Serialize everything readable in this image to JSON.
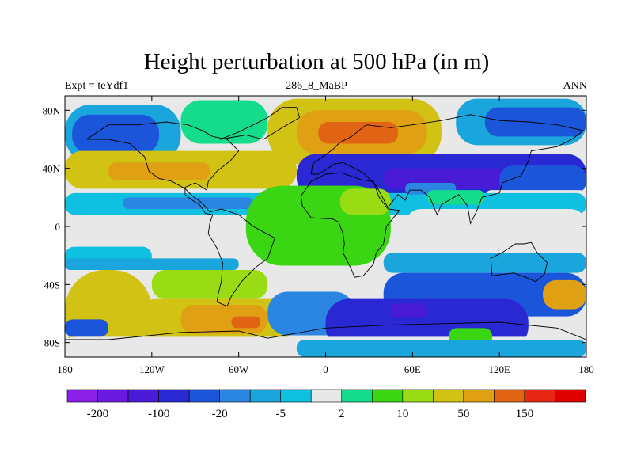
{
  "title": "Height perturbation at 500 hPa (in m)",
  "left_label": "Expt = teYdf1",
  "center_label": "286_8_MaBP",
  "right_label": "ANN",
  "x_ticks": [
    {
      "value": -180,
      "label": "180"
    },
    {
      "value": -120,
      "label": "120W"
    },
    {
      "value": -60,
      "label": "60W"
    },
    {
      "value": 0,
      "label": "0"
    },
    {
      "value": 60,
      "label": "60E"
    },
    {
      "value": 120,
      "label": "120E"
    },
    {
      "value": 180,
      "label": "180"
    }
  ],
  "y_ticks": [
    {
      "value": 80,
      "label": "80N"
    },
    {
      "value": 40,
      "label": "40N"
    },
    {
      "value": 0,
      "label": "0"
    },
    {
      "value": -40,
      "label": "40S"
    },
    {
      "value": -80,
      "label": "80S"
    }
  ],
  "x_range": [
    -180,
    180
  ],
  "y_range": [
    -90,
    90
  ],
  "colorbar": {
    "colors": [
      "#8a1fe8",
      "#6a1ae0",
      "#4a1bd6",
      "#2a28d2",
      "#1b55da",
      "#2a86e0",
      "#1aa5dc",
      "#10c0e0",
      "#e8e8e8",
      "#14dc8c",
      "#3ad614",
      "#9adc14",
      "#d2c214",
      "#e0a014",
      "#e06414",
      "#e82814",
      "#e00000"
    ],
    "labels": [
      {
        "boundary": 1,
        "text": "-200"
      },
      {
        "boundary": 3,
        "text": "-100"
      },
      {
        "boundary": 5,
        "text": "-20"
      },
      {
        "boundary": 7,
        "text": "-5"
      },
      {
        "boundary": 9,
        "text": "2"
      },
      {
        "boundary": 11,
        "text": "10"
      },
      {
        "boundary": 13,
        "text": "50"
      },
      {
        "boundary": 15,
        "text": "150"
      }
    ]
  },
  "field_regions": [
    {
      "lon": -180,
      "lat": 90,
      "w": 360,
      "h": 15,
      "c": 8
    },
    {
      "lon": -180,
      "lat": 84,
      "w": 80,
      "h": 40,
      "c": 6
    },
    {
      "lon": -175,
      "lat": 77,
      "w": 60,
      "h": 27,
      "c": 4
    },
    {
      "lon": -100,
      "lat": 87,
      "w": 60,
      "h": 30,
      "c": 9
    },
    {
      "lon": -40,
      "lat": 88,
      "w": 120,
      "h": 45,
      "c": 12
    },
    {
      "lon": -20,
      "lat": 80,
      "w": 90,
      "h": 30,
      "c": 13
    },
    {
      "lon": -5,
      "lat": 72,
      "w": 55,
      "h": 15,
      "c": 14
    },
    {
      "lon": 90,
      "lat": 88,
      "w": 90,
      "h": 32,
      "c": 6
    },
    {
      "lon": 110,
      "lat": 82,
      "w": 70,
      "h": 20,
      "c": 4
    },
    {
      "lon": -180,
      "lat": 52,
      "w": 160,
      "h": 26,
      "c": 12
    },
    {
      "lon": -150,
      "lat": 44,
      "w": 70,
      "h": 12,
      "c": 13
    },
    {
      "lon": -20,
      "lat": 50,
      "w": 200,
      "h": 30,
      "c": 3
    },
    {
      "lon": 40,
      "lat": 40,
      "w": 90,
      "h": 14,
      "c": 2
    },
    {
      "lon": 120,
      "lat": 42,
      "w": 60,
      "h": 20,
      "c": 4
    },
    {
      "lon": 110,
      "lat": 25,
      "w": 70,
      "h": 10,
      "c": 8
    },
    {
      "lon": -180,
      "lat": 23,
      "w": 360,
      "h": 15,
      "c": 7
    },
    {
      "lon": -140,
      "lat": 20,
      "w": 90,
      "h": 8,
      "c": 5
    },
    {
      "lon": -170,
      "lat": 8,
      "w": 100,
      "h": 12,
      "c": 8
    },
    {
      "lon": -55,
      "lat": 28,
      "w": 100,
      "h": 55,
      "c": 10
    },
    {
      "lon": 10,
      "lat": 26,
      "w": 35,
      "h": 18,
      "c": 11
    },
    {
      "lon": 55,
      "lat": 30,
      "w": 35,
      "h": 8,
      "c": 5
    },
    {
      "lon": 70,
      "lat": 25,
      "w": 40,
      "h": 10,
      "c": 9
    },
    {
      "lon": 55,
      "lat": 12,
      "w": 125,
      "h": 24,
      "c": 8
    },
    {
      "lon": -180,
      "lat": -14,
      "w": 60,
      "h": 14,
      "c": 7
    },
    {
      "lon": -180,
      "lat": -22,
      "w": 120,
      "h": 8,
      "c": 6
    },
    {
      "lon": 40,
      "lat": -18,
      "w": 140,
      "h": 14,
      "c": 6
    },
    {
      "lon": 40,
      "lat": -32,
      "w": 140,
      "h": 30,
      "c": 4
    },
    {
      "lon": -180,
      "lat": -30,
      "w": 60,
      "h": 62,
      "c": 12
    },
    {
      "lon": -120,
      "lat": -30,
      "w": 80,
      "h": 20,
      "c": 11
    },
    {
      "lon": -130,
      "lat": -50,
      "w": 110,
      "h": 28,
      "c": 12
    },
    {
      "lon": -100,
      "lat": -54,
      "w": 60,
      "h": 20,
      "c": 13
    },
    {
      "lon": -65,
      "lat": -62,
      "w": 20,
      "h": 8,
      "c": 14
    },
    {
      "lon": -40,
      "lat": -45,
      "w": 60,
      "h": 30,
      "c": 5
    },
    {
      "lon": 0,
      "lat": -50,
      "w": 140,
      "h": 35,
      "c": 3
    },
    {
      "lon": 45,
      "lat": -53,
      "w": 25,
      "h": 10,
      "c": 2
    },
    {
      "lon": 150,
      "lat": -37,
      "w": 30,
      "h": 20,
      "c": 13
    },
    {
      "lon": -180,
      "lat": -64,
      "w": 30,
      "h": 12,
      "c": 4
    },
    {
      "lon": -180,
      "lat": -76,
      "w": 360,
      "h": 14,
      "c": 8
    },
    {
      "lon": 85,
      "lat": -70,
      "w": 30,
      "h": 12,
      "c": 10
    },
    {
      "lon": -20,
      "lat": -78,
      "w": 200,
      "h": 12,
      "c": 6
    }
  ],
  "coastlines": [
    [
      [
        -165,
        60
      ],
      [
        -150,
        70
      ],
      [
        -130,
        70
      ],
      [
        -110,
        72
      ],
      [
        -95,
        70
      ],
      [
        -85,
        66
      ],
      [
        -78,
        62
      ],
      [
        -68,
        60
      ],
      [
        -60,
        52
      ],
      [
        -66,
        45
      ],
      [
        -75,
        38
      ],
      [
        -81,
        31
      ],
      [
        -82,
        25
      ],
      [
        -90,
        30
      ],
      [
        -97,
        27
      ],
      [
        -97,
        22
      ],
      [
        -92,
        18
      ],
      [
        -87,
        15
      ],
      [
        -83,
        9
      ],
      [
        -78,
        8
      ],
      [
        -80,
        2
      ],
      [
        -81,
        -5
      ],
      [
        -75,
        -15
      ],
      [
        -71,
        -25
      ],
      [
        -72,
        -38
      ],
      [
        -74,
        -46
      ],
      [
        -75,
        -52
      ],
      [
        -68,
        -55
      ],
      [
        -65,
        -48
      ],
      [
        -58,
        -38
      ],
      [
        -48,
        -28
      ],
      [
        -40,
        -22
      ],
      [
        -35,
        -8
      ],
      [
        -50,
        0
      ],
      [
        -60,
        8
      ],
      [
        -72,
        12
      ],
      [
        -80,
        10
      ],
      [
        -85,
        16
      ],
      [
        -92,
        21
      ],
      [
        -97,
        26
      ],
      [
        -106,
        31
      ],
      [
        -115,
        33
      ],
      [
        -122,
        38
      ],
      [
        -125,
        48
      ],
      [
        -135,
        57
      ],
      [
        -150,
        60
      ],
      [
        -165,
        60
      ]
    ],
    [
      [
        -10,
        36
      ],
      [
        -9,
        43
      ],
      [
        -2,
        48
      ],
      [
        5,
        53
      ],
      [
        10,
        58
      ],
      [
        18,
        62
      ],
      [
        28,
        70
      ],
      [
        45,
        68
      ],
      [
        60,
        70
      ],
      [
        80,
        73
      ],
      [
        100,
        77
      ],
      [
        120,
        73
      ],
      [
        140,
        72
      ],
      [
        160,
        70
      ],
      [
        178,
        66
      ],
      [
        170,
        60
      ],
      [
        160,
        55
      ],
      [
        142,
        52
      ],
      [
        140,
        45
      ],
      [
        135,
        35
      ],
      [
        122,
        30
      ],
      [
        120,
        23
      ],
      [
        108,
        20
      ],
      [
        104,
        10
      ],
      [
        100,
        2
      ],
      [
        98,
        14
      ],
      [
        92,
        22
      ],
      [
        80,
        15
      ],
      [
        77,
        8
      ],
      [
        72,
        20
      ],
      [
        66,
        25
      ],
      [
        58,
        25
      ],
      [
        55,
        18
      ],
      [
        50,
        22
      ],
      [
        43,
        13
      ],
      [
        35,
        28
      ],
      [
        32,
        31
      ],
      [
        26,
        37
      ],
      [
        20,
        40
      ],
      [
        12,
        44
      ],
      [
        6,
        43
      ],
      [
        0,
        39
      ],
      [
        -5,
        36
      ],
      [
        -10,
        36
      ]
    ],
    [
      [
        -17,
        21
      ],
      [
        -16,
        14
      ],
      [
        -10,
        6
      ],
      [
        5,
        5
      ],
      [
        9,
        3
      ],
      [
        12,
        -5
      ],
      [
        13,
        -12
      ],
      [
        12,
        -18
      ],
      [
        18,
        -30
      ],
      [
        20,
        -35
      ],
      [
        26,
        -34
      ],
      [
        33,
        -26
      ],
      [
        35,
        -18
      ],
      [
        40,
        -12
      ],
      [
        42,
        0
      ],
      [
        51,
        11
      ],
      [
        43,
        12
      ],
      [
        37,
        20
      ],
      [
        33,
        31
      ],
      [
        25,
        32
      ],
      [
        11,
        37
      ],
      [
        0,
        36
      ],
      [
        -10,
        31
      ],
      [
        -17,
        21
      ]
    ],
    [
      [
        114,
        -22
      ],
      [
        122,
        -18
      ],
      [
        131,
        -12
      ],
      [
        137,
        -12
      ],
      [
        142,
        -11
      ],
      [
        146,
        -18
      ],
      [
        153,
        -25
      ],
      [
        151,
        -33
      ],
      [
        145,
        -38
      ],
      [
        138,
        -35
      ],
      [
        130,
        -32
      ],
      [
        115,
        -34
      ],
      [
        114,
        -22
      ]
    ],
    [
      [
        -73,
        60
      ],
      [
        -60,
        65
      ],
      [
        -50,
        70
      ],
      [
        -40,
        75
      ],
      [
        -30,
        82
      ],
      [
        -20,
        82
      ],
      [
        -18,
        75
      ],
      [
        -30,
        68
      ],
      [
        -43,
        60
      ],
      [
        -55,
        63
      ],
      [
        -73,
        60
      ]
    ],
    [
      [
        -180,
        -78
      ],
      [
        -150,
        -78
      ],
      [
        -100,
        -73
      ],
      [
        -60,
        -72
      ],
      [
        -40,
        -77
      ],
      [
        0,
        -70
      ],
      [
        40,
        -68
      ],
      [
        80,
        -67
      ],
      [
        120,
        -66
      ],
      [
        160,
        -70
      ],
      [
        180,
        -78
      ]
    ]
  ]
}
